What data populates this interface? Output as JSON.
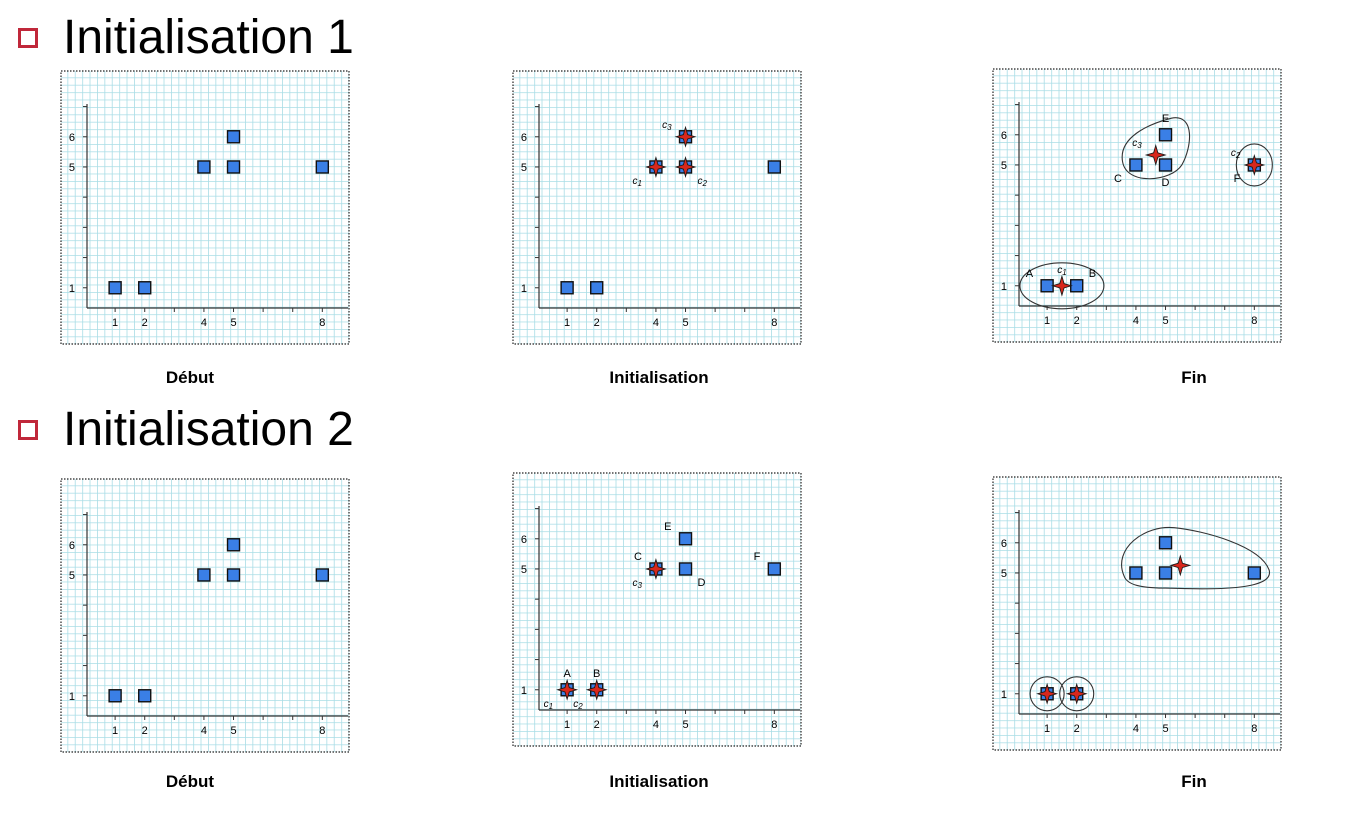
{
  "sections": [
    {
      "title": "Initialisation 1",
      "panels": [
        {
          "caption": "Début",
          "points": [
            {
              "x": 1,
              "y": 1
            },
            {
              "x": 2,
              "y": 1
            },
            {
              "x": 4,
              "y": 5
            },
            {
              "x": 5,
              "y": 5
            },
            {
              "x": 5,
              "y": 6
            },
            {
              "x": 8,
              "y": 5
            }
          ],
          "point_labels": [],
          "centroids": [],
          "clusters": []
        },
        {
          "caption": "Initialisation",
          "points": [
            {
              "x": 1,
              "y": 1
            },
            {
              "x": 2,
              "y": 1
            },
            {
              "x": 4,
              "y": 5
            },
            {
              "x": 5,
              "y": 5
            },
            {
              "x": 5,
              "y": 6
            },
            {
              "x": 8,
              "y": 5
            }
          ],
          "point_labels": [],
          "centroids": [
            {
              "x": 4,
              "y": 5,
              "name": "c",
              "sub": "1",
              "side": "bl"
            },
            {
              "x": 5,
              "y": 5,
              "name": "c",
              "sub": "2",
              "side": "br"
            },
            {
              "x": 5,
              "y": 6,
              "name": "c",
              "sub": "3",
              "side": "tl"
            }
          ],
          "clusters": []
        },
        {
          "caption": "Fin",
          "points": [
            {
              "x": 1,
              "y": 1
            },
            {
              "x": 2,
              "y": 1
            },
            {
              "x": 4,
              "y": 5
            },
            {
              "x": 5,
              "y": 5
            },
            {
              "x": 5,
              "y": 6
            },
            {
              "x": 8,
              "y": 5
            }
          ],
          "point_labels": [
            {
              "x": 1,
              "y": 1,
              "text": "A",
              "side": "tl"
            },
            {
              "x": 2,
              "y": 1,
              "text": "B",
              "side": "tr"
            },
            {
              "x": 4,
              "y": 5,
              "text": "C",
              "side": "bl"
            },
            {
              "x": 5,
              "y": 5,
              "text": "D",
              "side": "b"
            },
            {
              "x": 5,
              "y": 6,
              "text": "E",
              "side": "t"
            },
            {
              "x": 8,
              "y": 5,
              "text": "F",
              "side": "bl"
            }
          ],
          "centroids": [
            {
              "x": 1.5,
              "y": 1,
              "name": "c",
              "sub": "1",
              "side": "t"
            },
            {
              "x": 8,
              "y": 5,
              "name": "c",
              "sub": "2",
              "side": "tl"
            },
            {
              "x": 4.67,
              "y": 5.33,
              "name": "c",
              "sub": "3",
              "side": "tl"
            }
          ],
          "clusters": [
            "A,B",
            "C,D,E",
            "F"
          ]
        }
      ]
    },
    {
      "title": "Initialisation 2",
      "panels": [
        {
          "caption": "Début",
          "points": [
            {
              "x": 1,
              "y": 1
            },
            {
              "x": 2,
              "y": 1
            },
            {
              "x": 4,
              "y": 5
            },
            {
              "x": 5,
              "y": 5
            },
            {
              "x": 5,
              "y": 6
            },
            {
              "x": 8,
              "y": 5
            }
          ],
          "point_labels": [],
          "centroids": [],
          "clusters": []
        },
        {
          "caption": "Initialisation",
          "points": [
            {
              "x": 1,
              "y": 1
            },
            {
              "x": 2,
              "y": 1
            },
            {
              "x": 4,
              "y": 5
            },
            {
              "x": 5,
              "y": 5
            },
            {
              "x": 5,
              "y": 6
            },
            {
              "x": 8,
              "y": 5
            }
          ],
          "point_labels": [
            {
              "x": 1,
              "y": 1,
              "text": "A",
              "side": "t"
            },
            {
              "x": 2,
              "y": 1,
              "text": "B",
              "side": "t"
            },
            {
              "x": 4,
              "y": 5,
              "text": "C",
              "side": "tl"
            },
            {
              "x": 5,
              "y": 5,
              "text": "D",
              "side": "br"
            },
            {
              "x": 5,
              "y": 6,
              "text": "E",
              "side": "tl"
            },
            {
              "x": 8,
              "y": 5,
              "text": "F",
              "side": "tl"
            }
          ],
          "centroids": [
            {
              "x": 1,
              "y": 1,
              "name": "c",
              "sub": "1",
              "side": "bl"
            },
            {
              "x": 2,
              "y": 1,
              "name": "c",
              "sub": "2",
              "side": "bl"
            },
            {
              "x": 4,
              "y": 5,
              "name": "c",
              "sub": "3",
              "side": "bl"
            }
          ],
          "clusters": []
        },
        {
          "caption": "Fin",
          "points": [
            {
              "x": 1,
              "y": 1
            },
            {
              "x": 2,
              "y": 1
            },
            {
              "x": 4,
              "y": 5
            },
            {
              "x": 5,
              "y": 5
            },
            {
              "x": 5,
              "y": 6
            },
            {
              "x": 8,
              "y": 5
            }
          ],
          "point_labels": [],
          "centroids": [
            {
              "x": 1,
              "y": 1,
              "name": "",
              "sub": "",
              "side": "t"
            },
            {
              "x": 2,
              "y": 1,
              "name": "",
              "sub": "",
              "side": "t"
            },
            {
              "x": 5.5,
              "y": 5.25,
              "name": "",
              "sub": "",
              "side": "t"
            }
          ],
          "clusters": [
            "A",
            "B",
            "C,D,E,F"
          ]
        }
      ]
    }
  ],
  "axes": {
    "x_ticks": [
      "1",
      "2",
      "4",
      "5",
      "8"
    ],
    "y_ticks": [
      "1",
      "5",
      "6"
    ]
  },
  "colors": {
    "bullet": "#c0283a",
    "point_fill": "#3a7fe6",
    "centroid": "#d8271c",
    "grid": "#a9dde6"
  }
}
